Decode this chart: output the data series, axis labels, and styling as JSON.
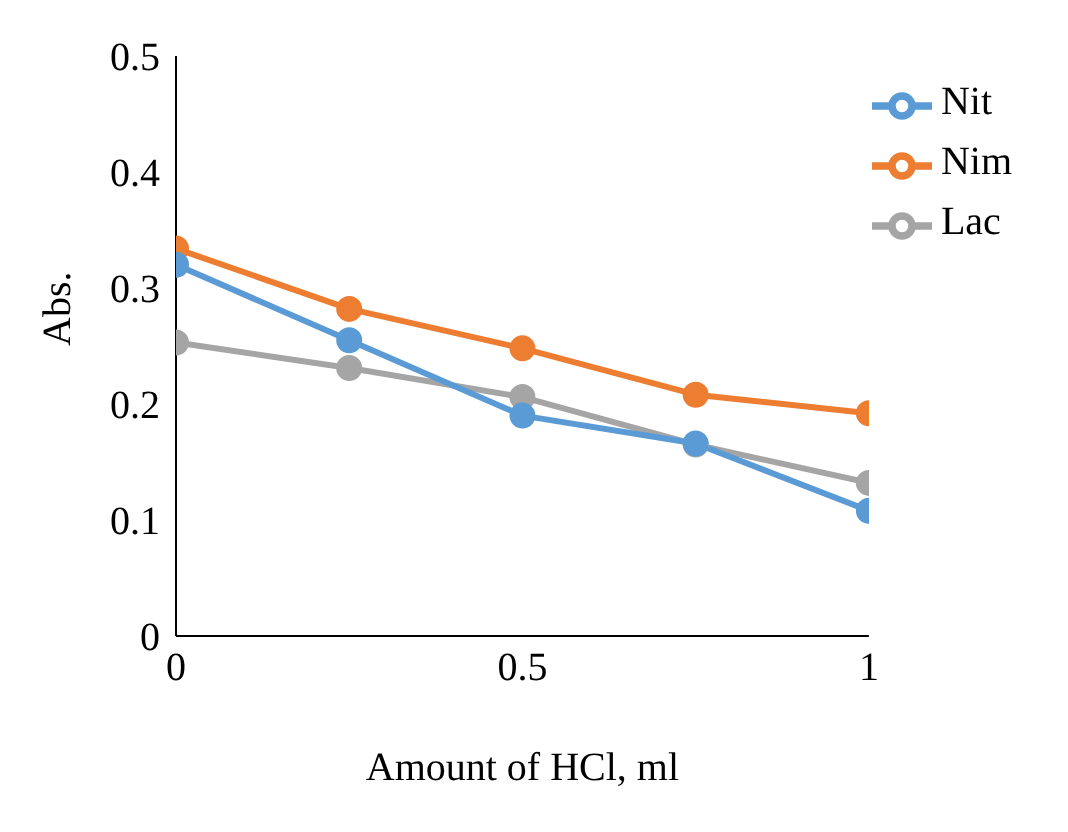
{
  "chart_data": {
    "type": "line",
    "xlabel": "Amount of  HCl, ml",
    "ylabel": "Abs.",
    "x": [
      0,
      0.25,
      0.5,
      0.75,
      1
    ],
    "series": [
      {
        "name": "Nit",
        "color": "#5b9bd5",
        "values": [
          0.32,
          0.255,
          0.19,
          0.166,
          0.108
        ]
      },
      {
        "name": "Nim",
        "color": "#ed7d31",
        "values": [
          0.334,
          0.282,
          0.248,
          0.208,
          0.192
        ]
      },
      {
        "name": "Lac",
        "color": "#a5a5a5",
        "values": [
          0.253,
          0.231,
          0.206,
          0.165,
          0.132
        ]
      }
    ],
    "xlim": [
      0,
      1
    ],
    "xticks": [
      0,
      0.5,
      1
    ],
    "ylim": [
      0,
      0.5
    ],
    "yticks": [
      0,
      0.1,
      0.2,
      0.3,
      0.4,
      0.5
    ],
    "grid": false,
    "legend": "top right",
    "marker": "circle",
    "line_style": "solid"
  }
}
